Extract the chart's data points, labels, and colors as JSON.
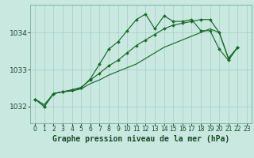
{
  "title": "Graphe pression niveau de la mer (hPa)",
  "bg_color": "#c8e8e0",
  "grid_color": "#a8ccc4",
  "line_color": "#1a6b2a",
  "marker_color": "#1a6b2a",
  "ylim": [
    1031.55,
    1034.75
  ],
  "yticks": [
    1032,
    1033,
    1034
  ],
  "xlim": [
    -0.5,
    23.5
  ],
  "xticks": [
    0,
    1,
    2,
    3,
    4,
    5,
    6,
    7,
    8,
    9,
    10,
    11,
    12,
    13,
    14,
    15,
    16,
    17,
    18,
    19,
    20,
    21,
    22,
    23
  ],
  "series1_x": [
    0,
    1,
    2,
    3,
    4,
    5,
    6,
    7,
    8,
    9,
    10,
    11,
    12,
    13,
    14,
    15,
    16,
    17,
    18,
    19,
    20,
    21,
    22
  ],
  "series1_y": [
    1032.2,
    1032.0,
    1032.35,
    1032.4,
    1032.45,
    1032.5,
    1032.75,
    1033.15,
    1033.55,
    1033.75,
    1034.05,
    1034.35,
    1034.5,
    1034.1,
    1034.45,
    1034.3,
    1034.3,
    1034.35,
    1034.05,
    1034.05,
    1033.55,
    1033.25,
    1033.6
  ],
  "series2_x": [
    0,
    1,
    2,
    3,
    4,
    5,
    6,
    7,
    8,
    9,
    10,
    11,
    12,
    13,
    14,
    15,
    16,
    17,
    18,
    19,
    20,
    21,
    22
  ],
  "series2_y": [
    1032.2,
    1032.0,
    1032.35,
    1032.4,
    1032.45,
    1032.52,
    1032.72,
    1032.9,
    1033.1,
    1033.25,
    1033.45,
    1033.65,
    1033.8,
    1033.95,
    1034.1,
    1034.2,
    1034.25,
    1034.3,
    1034.35,
    1034.35,
    1034.0,
    1033.3,
    1033.6
  ],
  "series3_x": [
    0,
    1,
    2,
    3,
    4,
    5,
    6,
    7,
    8,
    9,
    10,
    11,
    12,
    13,
    14,
    15,
    16,
    17,
    18,
    19,
    20,
    21,
    22
  ],
  "series3_y": [
    1032.2,
    1032.05,
    1032.35,
    1032.4,
    1032.42,
    1032.48,
    1032.62,
    1032.72,
    1032.85,
    1032.95,
    1033.05,
    1033.15,
    1033.3,
    1033.45,
    1033.6,
    1033.7,
    1033.8,
    1033.9,
    1034.0,
    1034.1,
    1034.0,
    1033.3,
    1033.6
  ],
  "xlabel_fontsize": 7.0,
  "ytick_fontsize": 6.5,
  "xtick_fontsize": 5.5,
  "spine_color": "#7aaa99"
}
